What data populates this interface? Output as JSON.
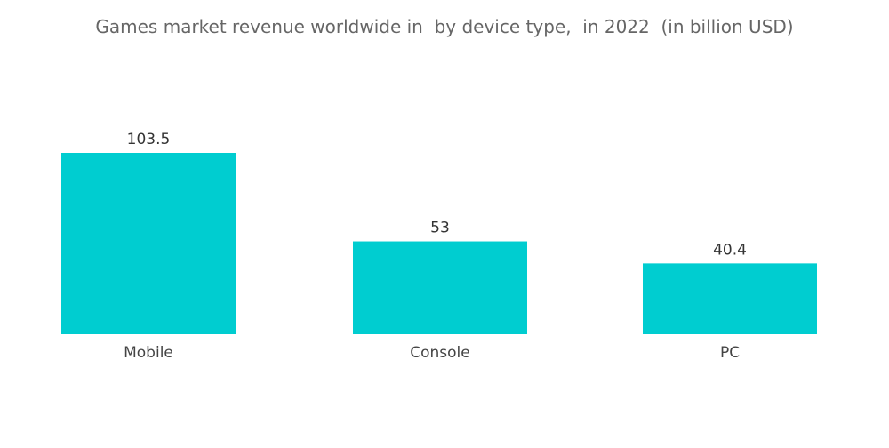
{
  "chart_data": {
    "type": "bar",
    "title": "Games market revenue worldwide in  by device type,  in 2022  (in billion USD)",
    "categories": [
      "Mobile",
      "Console",
      "PC"
    ],
    "values": [
      103.5,
      53,
      40.4
    ],
    "value_labels": [
      "103.5",
      "53",
      "40.4"
    ],
    "xlabel": "",
    "ylabel": "",
    "ylim": [
      0,
      103.5
    ],
    "grid": false,
    "legend": "none",
    "colors": {
      "bar": "#00CDD0"
    }
  }
}
